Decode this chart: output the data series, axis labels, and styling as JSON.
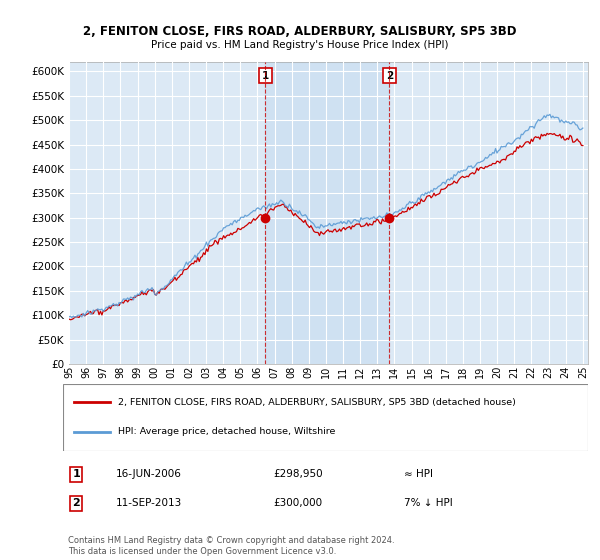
{
  "title_line1": "2, FENITON CLOSE, FIRS ROAD, ALDERBURY, SALISBURY, SP5 3BD",
  "title_line2": "Price paid vs. HM Land Registry's House Price Index (HPI)",
  "bg_color": "#dce9f5",
  "shade_color": "#c8ddf0",
  "legend_label_red": "2, FENITON CLOSE, FIRS ROAD, ALDERBURY, SALISBURY, SP5 3BD (detached house)",
  "legend_label_blue": "HPI: Average price, detached house, Wiltshire",
  "transaction1_date": "16-JUN-2006",
  "transaction1_price": "£298,950",
  "transaction1_hpi": "≈ HPI",
  "transaction2_date": "11-SEP-2013",
  "transaction2_price": "£300,000",
  "transaction2_hpi": "7% ↓ HPI",
  "footer": "Contains HM Land Registry data © Crown copyright and database right 2024.\nThis data is licensed under the Open Government Licence v3.0.",
  "ylim": [
    0,
    620000
  ],
  "yticks": [
    0,
    50000,
    100000,
    150000,
    200000,
    250000,
    300000,
    350000,
    400000,
    450000,
    500000,
    550000,
    600000
  ],
  "transaction1_x": 2006.46,
  "transaction1_y": 298950,
  "transaction2_x": 2013.71,
  "transaction2_y": 300000,
  "vline1_x": 2006.46,
  "vline2_x": 2013.71,
  "xmin": 1995,
  "xmax": 2025.3
}
